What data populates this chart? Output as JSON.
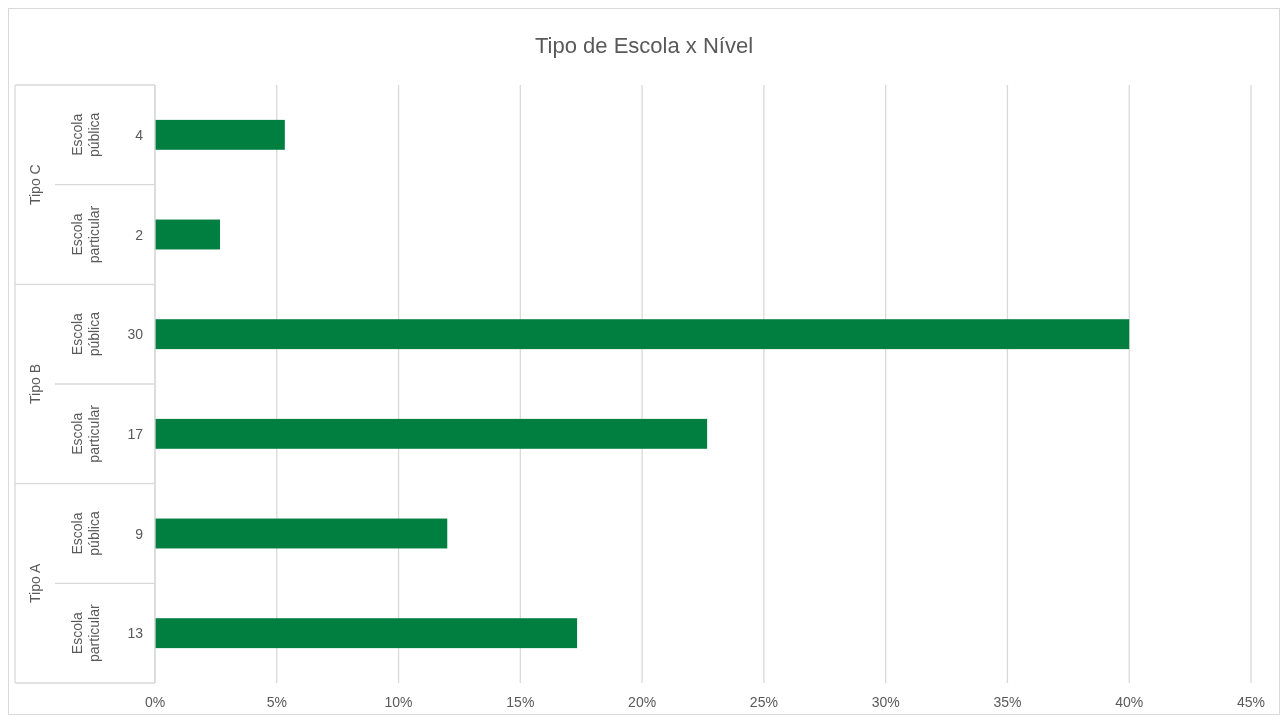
{
  "chart_data": {
    "type": "bar",
    "orientation": "horizontal",
    "title": "Tipo de Escola x Nível",
    "categories": [
      "4",
      "2",
      "30",
      "17",
      "9",
      "13"
    ],
    "values": [
      5.33,
      2.67,
      40,
      22.67,
      12,
      17.33
    ],
    "color": "#007f41",
    "xlim": [
      0,
      45
    ],
    "xticks": [
      {
        "value": 0,
        "label": "0%"
      },
      {
        "value": 5,
        "label": "5%"
      },
      {
        "value": 10,
        "label": "10%"
      },
      {
        "value": 15,
        "label": "15%"
      },
      {
        "value": 20,
        "label": "20%"
      },
      {
        "value": 25,
        "label": "25%"
      },
      {
        "value": 30,
        "label": "30%"
      },
      {
        "value": 35,
        "label": "35%"
      },
      {
        "value": 40,
        "label": "40%"
      },
      {
        "value": 45,
        "label": "45%"
      }
    ],
    "grid": "x",
    "annotations": [
      "Escola pública",
      "Escola particular",
      "Escola pública",
      "Escola particular",
      "Escola pública",
      "Escola particular",
      "Tipo C",
      "Tipo B",
      "Tipo A"
    ]
  }
}
